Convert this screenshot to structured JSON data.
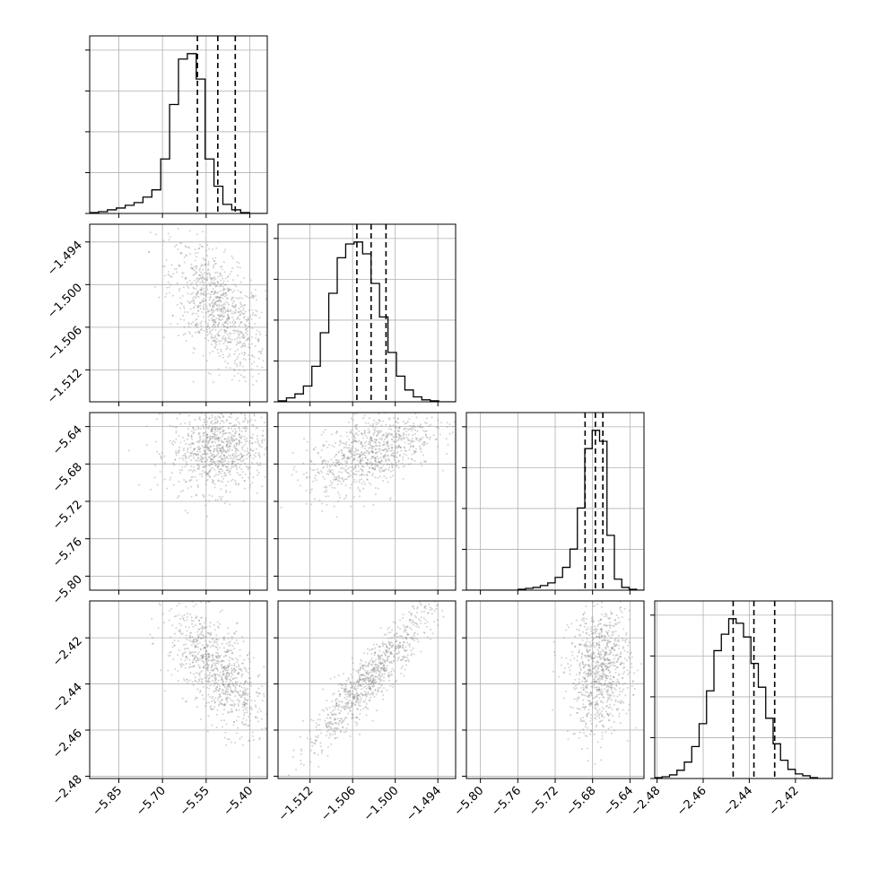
{
  "chart_data": {
    "type": "corner",
    "parameters": [
      {
        "index": 0,
        "range": [
          -5.95,
          -5.34
        ],
        "x_ticks": [
          -5.85,
          -5.7,
          -5.55,
          -5.4
        ],
        "x_tick_labels": [
          "−5.85",
          "−5.70",
          "−5.55",
          "−5.40"
        ],
        "y_ticks": [],
        "y_tick_labels": [],
        "quantiles": [
          -5.58,
          -5.51,
          -5.45
        ]
      },
      {
        "index": 1,
        "range": [
          -1.5165,
          -1.4915
        ],
        "x_ticks": [
          -1.512,
          -1.506,
          -1.5,
          -1.494
        ],
        "x_tick_labels": [
          "−1.512",
          "−1.506",
          "−1.500",
          "−1.494"
        ],
        "y_ticks": [
          -1.494,
          -1.5,
          -1.506,
          -1.512
        ],
        "y_tick_labels": [
          "−1.494",
          "−1.500",
          "−1.506",
          "−1.512"
        ],
        "quantiles": [
          -1.5054,
          -1.5034,
          -1.5013
        ]
      },
      {
        "index": 2,
        "range": [
          -5.815,
          -5.625
        ],
        "x_ticks": [
          -5.8,
          -5.76,
          -5.72,
          -5.68,
          -5.64
        ],
        "x_tick_labels": [
          "−5.80",
          "−5.76",
          "−5.72",
          "−5.68",
          "−5.64"
        ],
        "y_ticks": [
          -5.64,
          -5.68,
          -5.72,
          -5.76,
          -5.8
        ],
        "y_tick_labels": [
          "−5.64",
          "−5.68",
          "−5.72",
          "−5.76",
          "−5.80"
        ],
        "quantiles": [
          -5.688,
          -5.677,
          -5.669
        ]
      },
      {
        "index": 3,
        "range": [
          -2.481,
          -2.404
        ],
        "x_ticks": [
          -2.48,
          -2.46,
          -2.44,
          -2.42
        ],
        "x_tick_labels": [
          "−2.48",
          "−2.46",
          "−2.44",
          "−2.42"
        ],
        "y_ticks": [
          -2.42,
          -2.44,
          -2.46,
          -2.48
        ],
        "y_tick_labels": [
          "−2.42",
          "−2.44",
          "−2.46",
          "−2.48"
        ],
        "quantiles": [
          -2.447,
          -2.438,
          -2.429
        ]
      }
    ],
    "histograms": [
      {
        "param": 0,
        "bins": 20,
        "values": [
          1,
          2,
          4,
          6,
          9,
          12,
          18,
          26,
          60,
          120,
          170,
          176,
          148,
          60,
          30,
          10,
          4,
          1,
          0,
          0
        ]
      },
      {
        "param": 1,
        "bins": 21,
        "values": [
          1,
          4,
          8,
          16,
          36,
          70,
          110,
          146,
          160,
          162,
          150,
          120,
          86,
          50,
          26,
          12,
          5,
          2,
          1,
          0,
          0
        ]
      },
      {
        "param": 2,
        "bins": 24,
        "values": [
          0,
          0,
          0,
          0,
          0,
          0,
          0,
          1,
          2,
          3,
          5,
          8,
          14,
          25,
          45,
          90,
          155,
          175,
          163,
          60,
          12,
          3,
          1,
          0
        ]
      },
      {
        "param": 3,
        "bins": 24,
        "values": [
          1,
          2,
          4,
          9,
          18,
          35,
          60,
          96,
          140,
          158,
          175,
          170,
          155,
          126,
          100,
          66,
          38,
          20,
          10,
          5,
          3,
          1,
          0,
          0
        ]
      }
    ],
    "pairs": [
      {
        "x_param": 0,
        "y_param": 1,
        "mean": [
          -5.51,
          -1.5035
        ],
        "std": [
          0.065,
          0.0036
        ],
        "corr": -0.55
      },
      {
        "x_param": 0,
        "y_param": 2,
        "mean": [
          -5.51,
          -5.665
        ],
        "std": [
          0.065,
          0.018
        ],
        "corr": 0.05
      },
      {
        "x_param": 1,
        "y_param": 2,
        "mean": [
          -1.5035,
          -5.667
        ],
        "std": [
          0.0036,
          0.018
        ],
        "corr": 0.55
      },
      {
        "x_param": 0,
        "y_param": 3,
        "mean": [
          -5.51,
          -2.435
        ],
        "std": [
          0.065,
          0.011
        ],
        "corr": -0.65
      },
      {
        "x_param": 1,
        "y_param": 3,
        "mean": [
          -1.5035,
          -2.437
        ],
        "std": [
          0.0036,
          0.013
        ],
        "corr": 0.93
      },
      {
        "x_param": 2,
        "y_param": 3,
        "mean": [
          -5.672,
          -2.434
        ],
        "std": [
          0.013,
          0.011
        ],
        "corr": 0.1
      }
    ],
    "quantile_line_style": "dashed",
    "grid": true,
    "colors": {
      "hist": "#000000",
      "contour": "#000000",
      "scatter": "#808080",
      "density": "#000000",
      "grid": "#b0b0b0"
    }
  }
}
